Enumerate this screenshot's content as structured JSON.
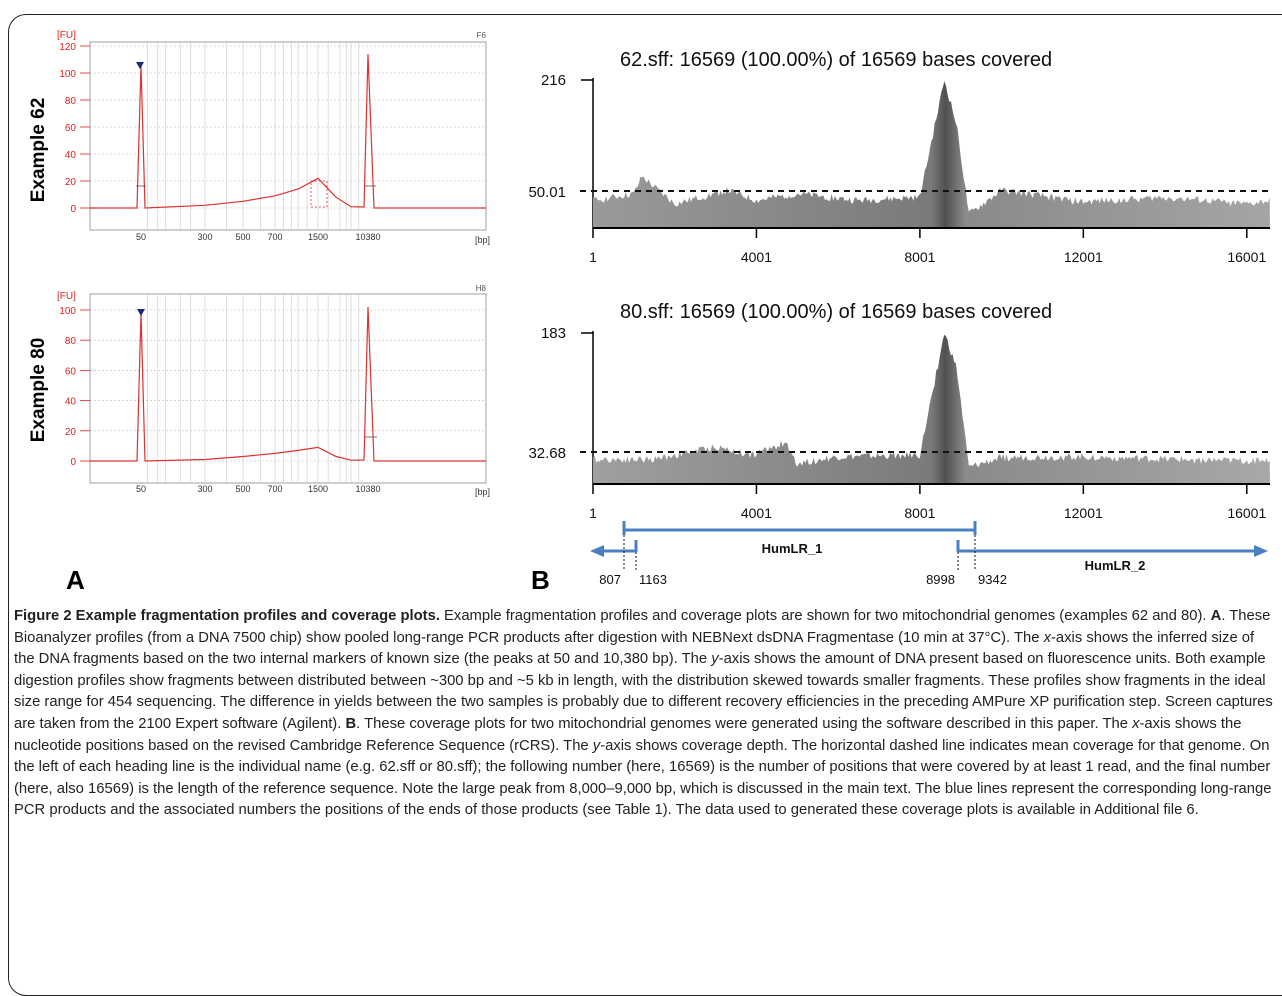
{
  "figure": {
    "panel_a_label": "A",
    "panel_b_label": "B"
  },
  "panel_a": {
    "x_unit": "[bp]",
    "y_unit": "[FU]",
    "x_ticks": [
      "50",
      "300",
      "500",
      "700",
      "1500",
      "10380"
    ],
    "plots": [
      {
        "row_label": "Example 62",
        "well_label": "F6",
        "y_ticks": [
          "0",
          "20",
          "40",
          "60",
          "80",
          "100",
          "120"
        ]
      },
      {
        "row_label": "Example 80",
        "well_label": "H8",
        "y_ticks": [
          "0",
          "20",
          "40",
          "60",
          "80",
          "100"
        ]
      }
    ]
  },
  "panel_b": {
    "x_ticks": [
      "1",
      "4001",
      "8001",
      "12001",
      "16001"
    ],
    "plots": [
      {
        "title": "62.sff: 16569 (100.00%) of 16569 bases covered",
        "y_max_label": "216",
        "mean_label": "50.01"
      },
      {
        "title": "80.sff: 16569 (100.00%) of 16569 bases covered",
        "y_max_label": "183",
        "mean_label": "32.68"
      }
    ],
    "amplicons": {
      "humlr1_label": "HumLR_1",
      "humlr2_label": "HumLR_2",
      "pos_807": "807",
      "pos_1163": "1163",
      "pos_8998": "8998",
      "pos_9342": "9342"
    },
    "amplicon_color": "#4a7fc1"
  },
  "chart_data": [
    {
      "type": "line",
      "panel": "A",
      "row_label": "Example 62",
      "xlabel": "[bp]",
      "ylabel": "[FU]",
      "ylim": [
        0,
        120
      ],
      "x": [
        50,
        300,
        500,
        700,
        1000,
        1500,
        2500,
        5000,
        10380
      ],
      "series": [
        {
          "values": [
            106,
            2,
            5,
            9,
            14,
            22,
            8,
            1,
            114
          ]
        }
      ]
    },
    {
      "type": "line",
      "panel": "A",
      "row_label": "Example 80",
      "xlabel": "[bp]",
      "ylabel": "[FU]",
      "ylim": [
        0,
        100
      ],
      "x": [
        50,
        300,
        500,
        700,
        1000,
        1500,
        2500,
        5000,
        10380
      ],
      "series": [
        {
          "values": [
            98,
            1,
            3,
            5,
            7,
            9,
            3,
            0.5,
            102
          ]
        }
      ]
    },
    {
      "type": "area",
      "panel": "B",
      "title": "62.sff: 16569 (100.00%) of 16569 bases covered",
      "ylim": [
        0,
        216
      ],
      "x": [
        1,
        1000,
        1200,
        2000,
        3300,
        4001,
        5000,
        6500,
        8001,
        8600,
        8900,
        9200,
        10000,
        12001,
        14000,
        16001,
        16569
      ],
      "values": [
        40,
        50,
        75,
        35,
        55,
        40,
        50,
        40,
        45,
        216,
        150,
        20,
        55,
        38,
        45,
        35,
        40
      ],
      "mean": 50.01
    },
    {
      "type": "area",
      "panel": "B",
      "title": "80.sff: 16569 (100.00%) of 16569 bases covered",
      "ylim": [
        0,
        183
      ],
      "x": [
        1,
        1500,
        3000,
        3900,
        4700,
        5000,
        6000,
        8001,
        8600,
        8900,
        9200,
        10000,
        12001,
        14000,
        16001,
        16569
      ],
      "values": [
        30,
        30,
        45,
        35,
        50,
        25,
        33,
        35,
        183,
        140,
        20,
        32,
        33,
        30,
        28,
        30
      ],
      "mean": 32.68
    }
  ],
  "caption": {
    "heading": "Figure 2 Example fragmentation profiles and coverage plots.",
    "p1": " Example fragmentation profiles and coverage plots are shown for two mitochondrial genomes (examples 62 and 80). ",
    "label_a": "A",
    "p2": ". These Bioanalyzer profiles (from a DNA 7500 chip) show pooled long-range PCR products after digestion with NEBNext dsDNA Fragmentase (10 min at 37°C). The ",
    "x_var": "x",
    "p3": "-axis shows the inferred size of the DNA fragments based on the two internal markers of known size (the peaks at 50 and 10,380 bp). The ",
    "y_var": "y",
    "p4": "-axis shows the amount of DNA present based on fluorescence units. Both example digestion profiles show fragments between distributed between ~300 bp and ~5 kb in length, with the distribution skewed towards smaller fragments. These profiles show fragments in the ideal size range for 454 sequencing. The difference in yields between the two samples is probably due to different recovery efficiencies in the preceding AMPure XP purification step. Screen captures are taken from the 2100 Expert software (Agilent). ",
    "label_b": "B",
    "p5": ". These coverage plots for two mitochondrial genomes were generated using the software described in this paper. The ",
    "x_var2": "x",
    "p6": "-axis shows the nucleotide positions based on the revised Cambridge Reference Sequence (rCRS). The ",
    "y_var2": "y",
    "p7": "-axis shows coverage depth. The horizontal dashed line indicates mean coverage for that genome. On the left of each heading line is the individual name (e.g. 62.sff or 80.sff); the following number (here, 16569) is the number of positions that were covered by at least 1 read, and the final number (here, also 16569) is the length of the reference sequence. Note the large peak from 8,000–9,000 bp, which is discussed in the main text. The blue lines represent the corresponding long-range PCR products and the associated numbers the positions of the ends of those products (see Table 1). The data used to generated these coverage plots is available in Additional file 6."
  }
}
